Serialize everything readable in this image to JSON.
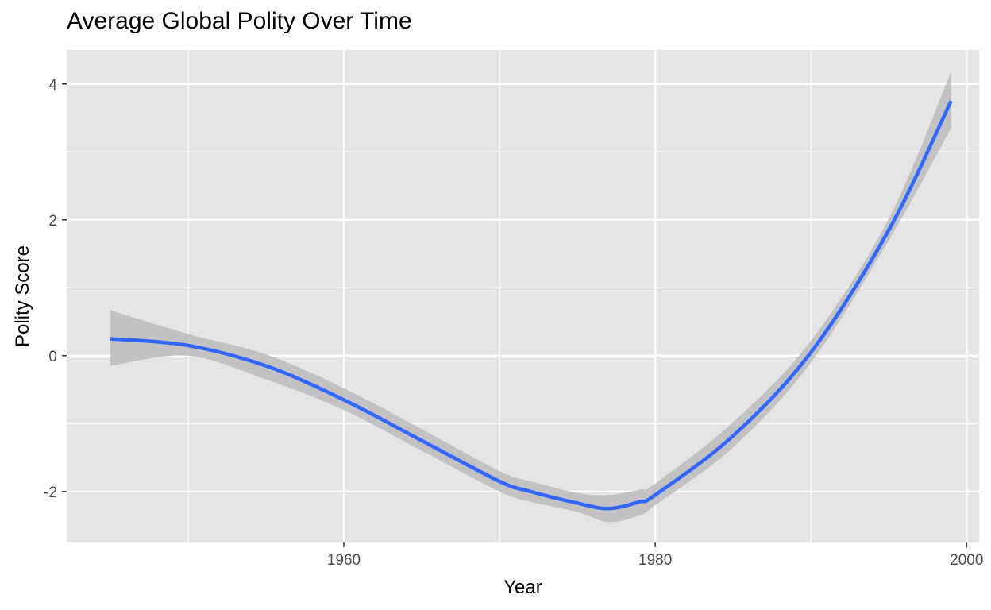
{
  "chart_data": {
    "type": "line",
    "title": "Average Global Polity Over Time",
    "xlabel": "Year",
    "ylabel": "Polity Score",
    "xlim": [
      1942.2,
      2000.8
    ],
    "ylim": [
      -2.75,
      4.5
    ],
    "x_ticks": [
      1960,
      1980,
      2000
    ],
    "x_tick_labels": [
      "1960",
      "1980",
      "2000"
    ],
    "x_minor_ticks": [
      1950,
      1970,
      1990
    ],
    "y_ticks": [
      -2,
      0,
      2,
      4
    ],
    "y_tick_labels": [
      "-2",
      "0",
      "2",
      "4"
    ],
    "y_minor_ticks": [
      -1,
      1,
      3
    ],
    "grid": true,
    "legend": "none",
    "colors": {
      "panel": "#e5e5e5",
      "grid": "#ffffff",
      "line": "#3366ff",
      "ribbon": "#bcbcbc"
    },
    "series": [
      {
        "type": "smooth",
        "x": [
          1945,
          1950,
          1955,
          1960,
          1965,
          1970,
          1972,
          1975,
          1977,
          1979,
          1980,
          1985,
          1990,
          1995,
          1999
        ],
        "y": [
          0.25,
          0.15,
          -0.15,
          -0.65,
          -1.25,
          -1.85,
          -2.0,
          -2.17,
          -2.25,
          -2.15,
          -2.05,
          -1.18,
          0.05,
          1.85,
          3.75
        ],
        "ymin": [
          -0.15,
          0.0,
          -0.35,
          -0.8,
          -1.4,
          -2.0,
          -2.15,
          -2.3,
          -2.45,
          -2.35,
          -2.2,
          -1.35,
          -0.1,
          1.7,
          3.35
        ],
        "ymax": [
          0.67,
          0.32,
          0.02,
          -0.48,
          -1.08,
          -1.7,
          -1.85,
          -2.02,
          -2.05,
          -1.97,
          -1.88,
          -0.98,
          0.22,
          2.02,
          4.18
        ]
      }
    ]
  }
}
